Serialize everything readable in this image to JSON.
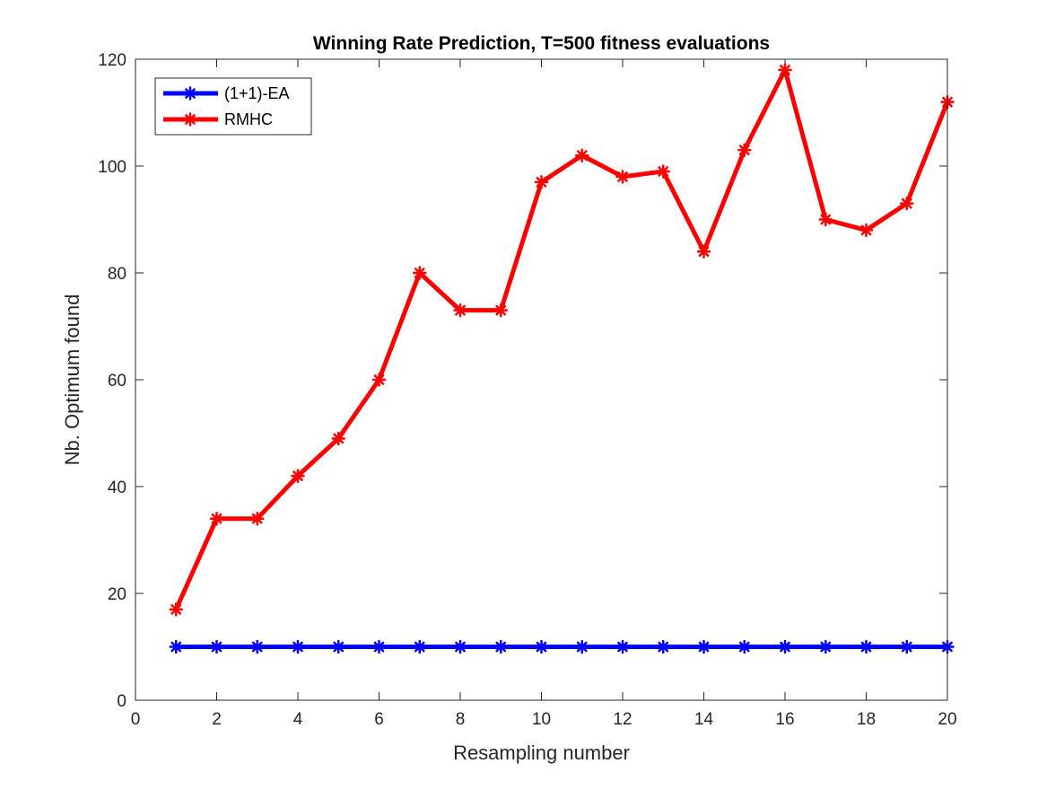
{
  "chart_data": {
    "type": "line",
    "title": "Winning Rate Prediction, T=500 fitness evaluations",
    "xlabel": "Resampling number",
    "ylabel": "Nb. Optimum found",
    "xlim": [
      0,
      20
    ],
    "ylim": [
      0,
      120
    ],
    "xticks": [
      0,
      2,
      4,
      6,
      8,
      10,
      12,
      14,
      16,
      18,
      20
    ],
    "yticks": [
      0,
      20,
      40,
      60,
      80,
      100,
      120
    ],
    "grid": false,
    "legend_position": "top-left",
    "x": [
      1,
      2,
      3,
      4,
      5,
      6,
      7,
      8,
      9,
      10,
      11,
      12,
      13,
      14,
      15,
      16,
      17,
      18,
      19,
      20
    ],
    "series": [
      {
        "name": "(1+1)-EA",
        "color": "#0000ff",
        "marker": "asterisk",
        "values": [
          10,
          10,
          10,
          10,
          10,
          10,
          10,
          10,
          10,
          10,
          10,
          10,
          10,
          10,
          10,
          10,
          10,
          10,
          10,
          10
        ]
      },
      {
        "name": "RMHC",
        "color": "#ff0000",
        "marker": "asterisk",
        "values": [
          17,
          34,
          34,
          42,
          49,
          60,
          80,
          73,
          73,
          97,
          102,
          98,
          99,
          84,
          103,
          118,
          90,
          88,
          93,
          112
        ]
      }
    ]
  }
}
